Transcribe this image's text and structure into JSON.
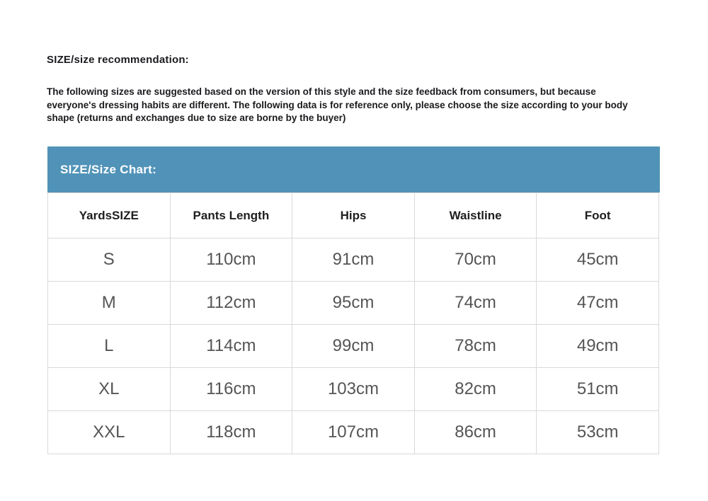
{
  "page": {
    "title": "SIZE/size recommendation:",
    "description": "The following sizes are suggested based on the version of this style and the size feedback from consumers, but because everyone's dressing habits are different. The following data is for reference only, please choose the size according to your body shape (returns and exchanges due to size are borne by the buyer)"
  },
  "size_chart": {
    "caption": "SIZE/Size Chart:",
    "accent_color": "#5193b8",
    "border_color": "#d9d9d9",
    "cell_text_color": "#555555",
    "columns": [
      "YardsSIZE",
      "Pants Length",
      "Hips",
      "Waistline",
      "Foot"
    ],
    "rows": [
      [
        "S",
        "110cm",
        "91cm",
        "70cm",
        "45cm"
      ],
      [
        "M",
        "112cm",
        "95cm",
        "74cm",
        "47cm"
      ],
      [
        "L",
        "114cm",
        "99cm",
        "78cm",
        "49cm"
      ],
      [
        "XL",
        "116cm",
        "103cm",
        "82cm",
        "51cm"
      ],
      [
        "XXL",
        "118cm",
        "107cm",
        "86cm",
        "53cm"
      ]
    ]
  }
}
